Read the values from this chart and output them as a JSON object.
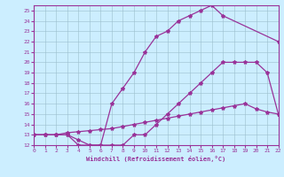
{
  "background_color": "#cceeff",
  "line_color": "#993399",
  "marker": "*",
  "xlabel": "Windchill (Refroidissement éolien,°C)",
  "xlim": [
    0,
    22
  ],
  "ylim": [
    12,
    25.5
  ],
  "xticks": [
    0,
    1,
    2,
    3,
    4,
    5,
    6,
    7,
    8,
    9,
    10,
    11,
    12,
    13,
    14,
    15,
    16,
    17,
    18,
    19,
    20,
    21,
    22
  ],
  "yticks": [
    12,
    13,
    14,
    15,
    16,
    17,
    18,
    19,
    20,
    21,
    22,
    23,
    24,
    25
  ],
  "curve1_x": [
    0,
    1,
    2,
    3,
    4,
    5,
    6,
    7,
    8,
    9,
    10,
    11,
    12,
    13,
    14,
    15,
    16,
    17,
    18,
    19,
    20,
    21,
    22
  ],
  "curve1_y": [
    13,
    13,
    13,
    13,
    12,
    12,
    12,
    12,
    12,
    13,
    13,
    14,
    15,
    16,
    17,
    18,
    19,
    20,
    20,
    20,
    20,
    19,
    15
  ],
  "curve2_x": [
    0,
    1,
    2,
    3,
    4,
    5,
    6,
    7,
    8,
    9,
    10,
    11,
    12,
    13,
    14,
    15,
    16,
    17,
    22
  ],
  "curve2_y": [
    13,
    13,
    13,
    13,
    12.5,
    12,
    12,
    16,
    17.5,
    19,
    21,
    22.5,
    23,
    24,
    24.5,
    25,
    25.5,
    24.5,
    22
  ],
  "curve3_x": [
    0,
    1,
    2,
    3,
    4,
    5,
    6,
    7,
    8,
    9,
    10,
    11,
    12,
    13,
    14,
    15,
    16,
    17,
    18,
    19,
    20,
    21,
    22
  ],
  "curve3_y": [
    13,
    13,
    13,
    13.2,
    13.3,
    13.4,
    13.5,
    13.6,
    13.8,
    14.0,
    14.2,
    14.4,
    14.6,
    14.8,
    15.0,
    15.2,
    15.4,
    15.6,
    15.8,
    16.0,
    15.5,
    15.2,
    15.0
  ]
}
